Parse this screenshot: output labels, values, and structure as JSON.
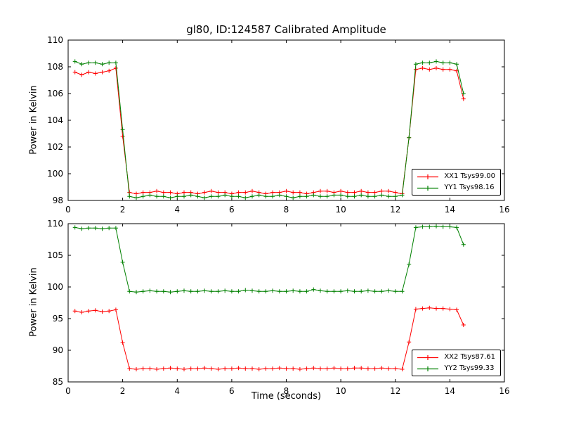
{
  "chart_data": [
    {
      "type": "line",
      "title": "gl80, ID:124587 Calibrated Amplitude",
      "xlabel": "",
      "ylabel": "Power in Kelvin",
      "xlim": [
        0,
        16
      ],
      "ylim": [
        98,
        110
      ],
      "xticks": [
        0,
        2,
        4,
        6,
        8,
        10,
        12,
        14,
        16
      ],
      "yticks": [
        98,
        100,
        102,
        104,
        106,
        108,
        110
      ],
      "grid": false,
      "legend_position": "lower right",
      "marker": "+",
      "x": [
        0.25,
        0.5,
        0.75,
        1.0,
        1.25,
        1.5,
        1.75,
        2.0,
        2.25,
        2.5,
        2.75,
        3.0,
        3.25,
        3.5,
        3.75,
        4.0,
        4.25,
        4.5,
        4.75,
        5.0,
        5.25,
        5.5,
        5.75,
        6.0,
        6.25,
        6.5,
        6.75,
        7.0,
        7.25,
        7.5,
        7.75,
        8.0,
        8.25,
        8.5,
        8.75,
        9.0,
        9.25,
        9.5,
        9.75,
        10.0,
        10.25,
        10.5,
        10.75,
        11.0,
        11.25,
        11.5,
        11.75,
        12.0,
        12.25,
        12.5,
        12.75,
        13.0,
        13.25,
        13.5,
        13.75,
        14.0,
        14.25,
        14.5
      ],
      "series": [
        {
          "name": "XX1 Tsys99.00",
          "color": "#ff0000",
          "values": [
            107.6,
            107.4,
            107.6,
            107.5,
            107.6,
            107.7,
            107.9,
            102.8,
            98.6,
            98.5,
            98.6,
            98.6,
            98.7,
            98.6,
            98.6,
            98.5,
            98.6,
            98.6,
            98.5,
            98.6,
            98.7,
            98.6,
            98.6,
            98.5,
            98.6,
            98.6,
            98.7,
            98.6,
            98.5,
            98.6,
            98.6,
            98.7,
            98.6,
            98.6,
            98.5,
            98.6,
            98.7,
            98.7,
            98.6,
            98.7,
            98.6,
            98.6,
            98.7,
            98.6,
            98.6,
            98.7,
            98.7,
            98.6,
            98.5,
            102.7,
            107.8,
            107.9,
            107.8,
            107.9,
            107.8,
            107.8,
            107.7,
            105.6
          ]
        },
        {
          "name": "YY1 Tsys98.16",
          "color": "#008000",
          "values": [
            108.4,
            108.2,
            108.3,
            108.3,
            108.2,
            108.3,
            108.3,
            103.3,
            98.3,
            98.2,
            98.3,
            98.4,
            98.3,
            98.3,
            98.2,
            98.3,
            98.3,
            98.4,
            98.3,
            98.2,
            98.3,
            98.3,
            98.4,
            98.3,
            98.3,
            98.2,
            98.3,
            98.4,
            98.3,
            98.3,
            98.4,
            98.3,
            98.2,
            98.3,
            98.3,
            98.4,
            98.3,
            98.3,
            98.4,
            98.4,
            98.3,
            98.3,
            98.4,
            98.3,
            98.3,
            98.4,
            98.3,
            98.3,
            98.4,
            102.7,
            108.2,
            108.3,
            108.3,
            108.4,
            108.3,
            108.3,
            108.2,
            106.0
          ]
        }
      ]
    },
    {
      "type": "line",
      "title": "",
      "xlabel": "Time (seconds)",
      "ylabel": "Power in Kelvin",
      "xlim": [
        0,
        16
      ],
      "ylim": [
        85,
        110
      ],
      "xticks": [
        0,
        2,
        4,
        6,
        8,
        10,
        12,
        14,
        16
      ],
      "yticks": [
        85,
        90,
        95,
        100,
        105,
        110
      ],
      "grid": false,
      "legend_position": "lower right",
      "marker": "+",
      "x": [
        0.25,
        0.5,
        0.75,
        1.0,
        1.25,
        1.5,
        1.75,
        2.0,
        2.25,
        2.5,
        2.75,
        3.0,
        3.25,
        3.5,
        3.75,
        4.0,
        4.25,
        4.5,
        4.75,
        5.0,
        5.25,
        5.5,
        5.75,
        6.0,
        6.25,
        6.5,
        6.75,
        7.0,
        7.25,
        7.5,
        7.75,
        8.0,
        8.25,
        8.5,
        8.75,
        9.0,
        9.25,
        9.5,
        9.75,
        10.0,
        10.25,
        10.5,
        10.75,
        11.0,
        11.25,
        11.5,
        11.75,
        12.0,
        12.25,
        12.5,
        12.75,
        13.0,
        13.25,
        13.5,
        13.75,
        14.0,
        14.25,
        14.5
      ],
      "series": [
        {
          "name": "XX2 Tsys87.61",
          "color": "#ff0000",
          "values": [
            96.2,
            96.0,
            96.2,
            96.3,
            96.1,
            96.2,
            96.4,
            91.2,
            87.1,
            87.0,
            87.1,
            87.1,
            87.0,
            87.1,
            87.2,
            87.1,
            87.0,
            87.1,
            87.1,
            87.2,
            87.1,
            87.0,
            87.1,
            87.1,
            87.2,
            87.1,
            87.1,
            87.0,
            87.1,
            87.1,
            87.2,
            87.1,
            87.1,
            87.0,
            87.1,
            87.2,
            87.1,
            87.1,
            87.2,
            87.1,
            87.1,
            87.2,
            87.2,
            87.1,
            87.1,
            87.2,
            87.1,
            87.1,
            87.0,
            91.3,
            96.5,
            96.6,
            96.7,
            96.6,
            96.6,
            96.5,
            96.4,
            94.0
          ]
        },
        {
          "name": "YY2 Tsys99.33",
          "color": "#008000",
          "values": [
            109.4,
            109.2,
            109.3,
            109.3,
            109.2,
            109.3,
            109.3,
            103.9,
            99.3,
            99.2,
            99.3,
            99.4,
            99.3,
            99.3,
            99.2,
            99.3,
            99.4,
            99.3,
            99.3,
            99.4,
            99.3,
            99.3,
            99.4,
            99.3,
            99.3,
            99.5,
            99.4,
            99.3,
            99.3,
            99.4,
            99.3,
            99.3,
            99.4,
            99.3,
            99.3,
            99.6,
            99.4,
            99.3,
            99.3,
            99.3,
            99.4,
            99.3,
            99.3,
            99.4,
            99.3,
            99.3,
            99.4,
            99.3,
            99.3,
            103.6,
            109.4,
            109.5,
            109.5,
            109.6,
            109.5,
            109.5,
            109.4,
            106.7
          ]
        }
      ]
    }
  ]
}
